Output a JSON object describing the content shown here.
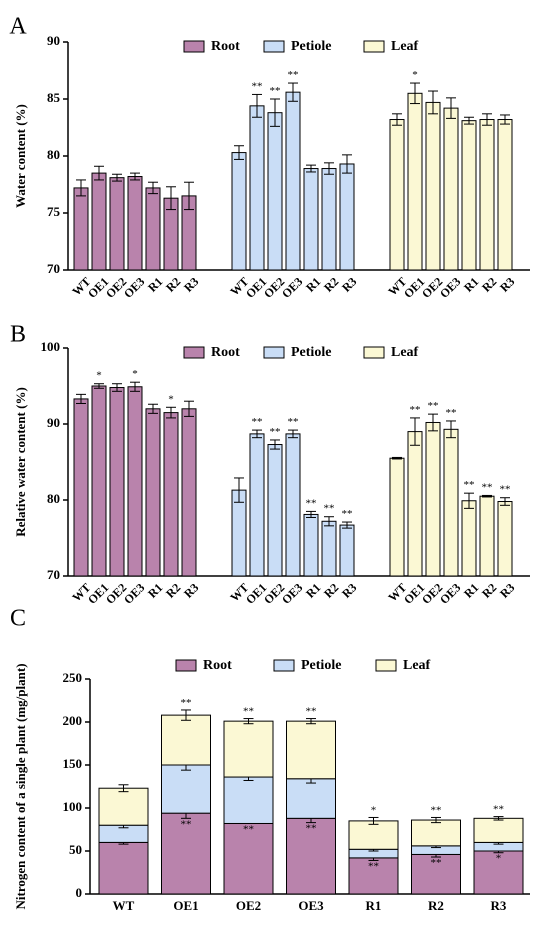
{
  "colors": {
    "root": "#b983ac",
    "petiole": "#c9ddf6",
    "leaf": "#fbf8d4",
    "axis": "#000000"
  },
  "chart_data": [
    {
      "type": "bar",
      "panel_label": "A",
      "ylabel": "Water content (%)",
      "ylim": [
        70,
        90
      ],
      "yticks": [
        70,
        75,
        80,
        85,
        90
      ],
      "legend": {
        "placement": "top",
        "entries": [
          "Root",
          "Petiole",
          "Leaf"
        ]
      },
      "categories": [
        "WT",
        "OE1",
        "OE2",
        "OE3",
        "R1",
        "R2",
        "R3"
      ],
      "series": [
        {
          "name": "Root",
          "values": [
            77.2,
            78.5,
            78.1,
            78.2,
            77.2,
            76.3,
            76.5
          ],
          "errors": [
            0.7,
            0.6,
            0.3,
            0.3,
            0.5,
            1.0,
            1.2
          ],
          "marks": [
            "",
            "",
            "",
            "",
            "",
            "",
            ""
          ]
        },
        {
          "name": "Petiole",
          "values": [
            80.3,
            84.4,
            83.8,
            85.6,
            78.9,
            78.9,
            79.3
          ],
          "errors": [
            0.6,
            1.0,
            1.2,
            0.8,
            0.3,
            0.5,
            0.8
          ],
          "marks": [
            "",
            "**",
            "**",
            "**",
            "",
            "",
            ""
          ]
        },
        {
          "name": "Leaf",
          "values": [
            83.2,
            85.5,
            84.7,
            84.2,
            83.1,
            83.2,
            83.2
          ],
          "errors": [
            0.5,
            0.9,
            1.0,
            0.9,
            0.3,
            0.5,
            0.4
          ],
          "marks": [
            "",
            "*",
            "",
            "",
            "",
            "",
            ""
          ]
        }
      ]
    },
    {
      "type": "bar",
      "panel_label": "B",
      "ylabel": "Relative water content (%)",
      "ylim": [
        70,
        100
      ],
      "yticks": [
        70,
        80,
        90,
        100
      ],
      "legend": {
        "placement": "top",
        "entries": [
          "Root",
          "Petiole",
          "Leaf"
        ]
      },
      "categories": [
        "WT",
        "OE1",
        "OE2",
        "OE3",
        "R1",
        "R2",
        "R3"
      ],
      "series": [
        {
          "name": "Root",
          "values": [
            93.3,
            95.0,
            94.8,
            94.9,
            92.0,
            91.5,
            92.0
          ],
          "errors": [
            0.6,
            0.3,
            0.5,
            0.6,
            0.6,
            0.7,
            1.0
          ],
          "marks": [
            "",
            "*",
            "",
            "*",
            "",
            "*",
            ""
          ]
        },
        {
          "name": "Petiole",
          "values": [
            81.3,
            88.7,
            87.3,
            88.7,
            78.1,
            77.2,
            76.7
          ],
          "errors": [
            1.6,
            0.5,
            0.6,
            0.5,
            0.4,
            0.6,
            0.4
          ],
          "marks": [
            "",
            "**",
            "**",
            "**",
            "**",
            "**",
            "**"
          ]
        },
        {
          "name": "Leaf",
          "values": [
            85.5,
            89.0,
            90.2,
            89.3,
            79.9,
            80.5,
            79.8
          ],
          "errors": [
            0.1,
            1.8,
            1.1,
            1.1,
            1.0,
            0.1,
            0.5
          ],
          "marks": [
            "",
            "**",
            "**",
            "**",
            "**",
            "**",
            "**"
          ]
        }
      ]
    },
    {
      "type": "stacked-bar",
      "panel_label": "C",
      "ylabel": "Nitrogen content of a single plant (mg/plant)",
      "ylim": [
        0,
        250
      ],
      "yticks": [
        0,
        50,
        100,
        150,
        200,
        250
      ],
      "legend": {
        "placement": "top",
        "entries": [
          "Root",
          "Petiole",
          "Leaf"
        ]
      },
      "categories": [
        "WT",
        "OE1",
        "OE2",
        "OE3",
        "R1",
        "R2",
        "R3"
      ],
      "series": [
        {
          "name": "Root",
          "values": [
            60,
            94,
            82,
            88,
            42,
            46,
            50
          ],
          "errors": [
            2,
            6,
            0,
            5,
            3,
            3,
            2
          ],
          "marks": [
            "",
            "**",
            "**",
            "**",
            "**",
            "**",
            "*"
          ]
        },
        {
          "name": "Petiole",
          "values": [
            20,
            56,
            54,
            46,
            10,
            10,
            10
          ],
          "errors": [
            3,
            6,
            4,
            5,
            2,
            2,
            2
          ],
          "marks": [
            "",
            "**",
            "**",
            "",
            "*",
            "*",
            "*"
          ]
        },
        {
          "name": "Leaf",
          "values": [
            43,
            58,
            65,
            67,
            33,
            30,
            28
          ],
          "errors": [
            4,
            6,
            3,
            3,
            4,
            3,
            2
          ],
          "marks": [
            "",
            "**",
            "**",
            "**",
            "*",
            "**",
            "**"
          ]
        }
      ]
    }
  ]
}
